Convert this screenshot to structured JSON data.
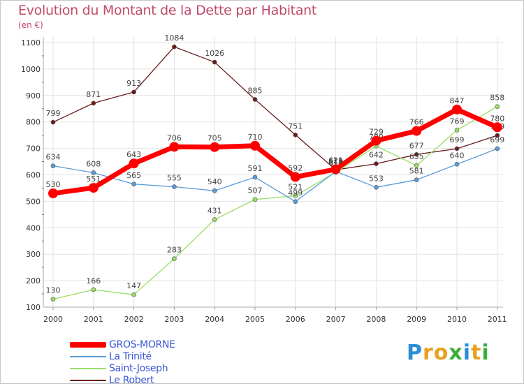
{
  "title": "Evolution du Montant de la Dette par Habitant",
  "unit_label": "(en €)",
  "logo": {
    "letters": [
      "P",
      "r",
      "o",
      "x",
      "i",
      "t",
      "i"
    ],
    "colors": [
      "#2a8fd6",
      "#e8a020",
      "#e8a020",
      "#3ab03a",
      "#2a8fd6",
      "#e8a020",
      "#3ab03a"
    ]
  },
  "chart_data": {
    "type": "line",
    "x": [
      "2000",
      "2001",
      "2002",
      "2003",
      "2004",
      "2005",
      "2006",
      "2007",
      "2008",
      "2009",
      "2010",
      "2011"
    ],
    "ylim": [
      100,
      1100
    ],
    "yticks": [
      100,
      200,
      300,
      400,
      500,
      600,
      700,
      800,
      900,
      1000,
      1100
    ],
    "grid": true,
    "legend_position": "bottom-left",
    "series": [
      {
        "name": "Le Robert",
        "color": "#6b1a1a",
        "values": [
          799,
          871,
          913,
          1084,
          1026,
          885,
          751,
          619,
          642,
          677,
          699,
          749
        ],
        "labels": [
          "799",
          "871",
          "913",
          "1084",
          "1026",
          "885",
          "751",
          "619",
          "642",
          "677",
          "699",
          "749"
        ]
      },
      {
        "name": "Saint-Joseph",
        "color": "#99dd66",
        "values": [
          130,
          166,
          147,
          283,
          431,
          507,
          521,
          610,
          709,
          635,
          769,
          858
        ],
        "labels": [
          "130",
          "166",
          "147",
          "283",
          "431",
          "507",
          "521",
          "610",
          "709",
          "635",
          "769",
          "858"
        ]
      },
      {
        "name": "La Trinité",
        "color": "#5a9bd8",
        "values": [
          634,
          608,
          565,
          555,
          540,
          591,
          499,
          613,
          553,
          581,
          640,
          699
        ],
        "labels": [
          "634",
          "608",
          "565",
          "555",
          "540",
          "591",
          "499",
          "613",
          "553",
          "581",
          "640",
          "699"
        ]
      },
      {
        "name": "GROS-MORNE",
        "color": "#ff0000",
        "values": [
          530,
          551,
          643,
          706,
          705,
          710,
          592,
          621,
          729,
          766,
          847,
          780
        ],
        "labels": [
          "530",
          "551",
          "643",
          "706",
          "705",
          "710",
          "592",
          "621",
          "729",
          "766",
          "847",
          "780"
        ]
      }
    ]
  },
  "legend": [
    {
      "label": "GROS-MORNE",
      "color": "#ff0000",
      "thickness": 8
    },
    {
      "label": "La Trinité",
      "color": "#5a9bd8",
      "thickness": 2
    },
    {
      "label": "Saint-Joseph",
      "color": "#99dd66",
      "thickness": 2
    },
    {
      "label": "Le Robert",
      "color": "#6b1a1a",
      "thickness": 2
    }
  ]
}
